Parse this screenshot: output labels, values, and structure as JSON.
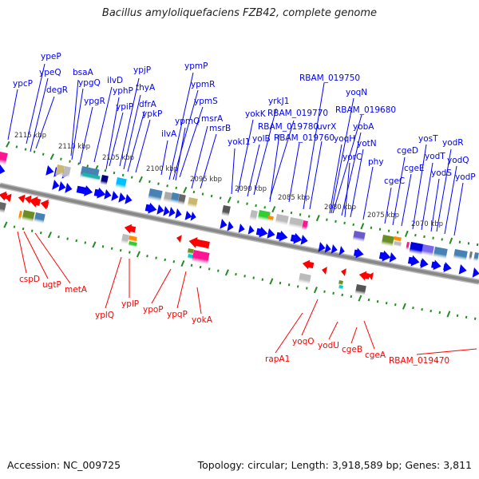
{
  "title": "Bacillus amyloliquefaciens FZB42, complete genome",
  "footer": {
    "accession": "Accession: NC_009725",
    "topology": "Topology: circular; Length: 3,918,589 bp; Genes: 3,811"
  },
  "colors": {
    "forward": "#0000ff",
    "reverse": "#ff0000",
    "ticks": "#228b22",
    "backbone": "#808080"
  },
  "kbp_labels": [
    "2115 kbp",
    "2110 kbp",
    "2105 kbp",
    "2100 kbp",
    "2095 kbp",
    "2090 kbp",
    "2085 kbp",
    "2080 kbp",
    "2075 kbp",
    "2070 kbp"
  ],
  "forward_genes": [
    "ypcP",
    "ypeP",
    "ypeQ",
    "degR",
    "bsaA",
    "ypgQ",
    "ypgR",
    "ilvD",
    "yphP",
    "ypiP",
    "ypjP",
    "thyA",
    "dfrA",
    "ypkP",
    "ilvA",
    "ypmP",
    "ypmR",
    "ypmQ",
    "ypmS",
    "msrA",
    "msrB",
    "yokK",
    "yokI1",
    "yolB",
    "yrkJ1",
    "RBAM_019770",
    "RBAM_019780",
    "RBAM_019760",
    "uvrX",
    "RBAM_019750",
    "yoqN",
    "RBAM_019680",
    "yobA",
    "yoqH",
    "yotN",
    "yorC",
    "phy",
    "cgeC",
    "cgeD",
    "cgeE",
    "yosT",
    "yodT",
    "yodS",
    "yodR",
    "yodQ",
    "yodP"
  ],
  "reverse_genes": [
    "cspD",
    "ugtP",
    "metA",
    "yplQ",
    "yplP",
    "ypoP",
    "ypqP",
    "yokA",
    "rapA1",
    "yoqO",
    "yodU",
    "cgeB",
    "cgeA",
    "RBAM_019470"
  ]
}
